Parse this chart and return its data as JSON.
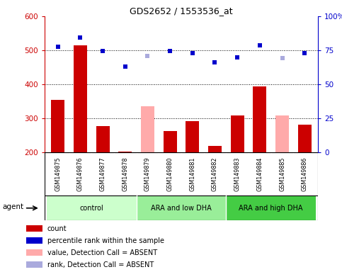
{
  "title": "GDS2652 / 1553536_at",
  "samples": [
    "GSM149875",
    "GSM149876",
    "GSM149877",
    "GSM149878",
    "GSM149879",
    "GSM149880",
    "GSM149881",
    "GSM149882",
    "GSM149883",
    "GSM149884",
    "GSM149885",
    "GSM149886"
  ],
  "groups": [
    {
      "label": "control",
      "color": "#ccffcc",
      "start": 0,
      "end": 4
    },
    {
      "label": "ARA and low DHA",
      "color": "#99ee99",
      "start": 4,
      "end": 8
    },
    {
      "label": "ARA and high DHA",
      "color": "#44cc44",
      "start": 8,
      "end": 12
    }
  ],
  "bar_values": [
    355,
    515,
    278,
    202,
    335,
    263,
    292,
    218,
    308,
    393,
    308,
    282
  ],
  "bar_colors": [
    "#cc0000",
    "#cc0000",
    "#cc0000",
    "#cc0000",
    "#ffaaaa",
    "#cc0000",
    "#cc0000",
    "#cc0000",
    "#cc0000",
    "#cc0000",
    "#ffaaaa",
    "#cc0000"
  ],
  "dot_values": [
    510,
    537,
    498,
    452,
    483,
    497,
    492,
    465,
    480,
    514,
    478,
    492
  ],
  "dot_colors": [
    "#0000cc",
    "#0000cc",
    "#0000cc",
    "#0000cc",
    "#aaaadd",
    "#0000cc",
    "#0000cc",
    "#0000cc",
    "#0000cc",
    "#0000cc",
    "#aaaadd",
    "#0000cc"
  ],
  "ylim_left": [
    200,
    600
  ],
  "ylim_right": [
    0,
    100
  ],
  "yticks_left": [
    200,
    300,
    400,
    500,
    600
  ],
  "yticks_right": [
    0,
    25,
    50,
    75,
    100
  ],
  "ytick_labels_right": [
    "0",
    "25",
    "50",
    "75",
    "100%"
  ],
  "hlines": [
    300,
    400,
    500
  ],
  "legend_items": [
    {
      "label": "count",
      "color": "#cc0000"
    },
    {
      "label": "percentile rank within the sample",
      "color": "#0000cc"
    },
    {
      "label": "value, Detection Call = ABSENT",
      "color": "#ffaaaa"
    },
    {
      "label": "rank, Detection Call = ABSENT",
      "color": "#aaaadd"
    }
  ],
  "agent_label": "agent",
  "sample_bg": "#cccccc",
  "plot_bg": "#ffffff"
}
